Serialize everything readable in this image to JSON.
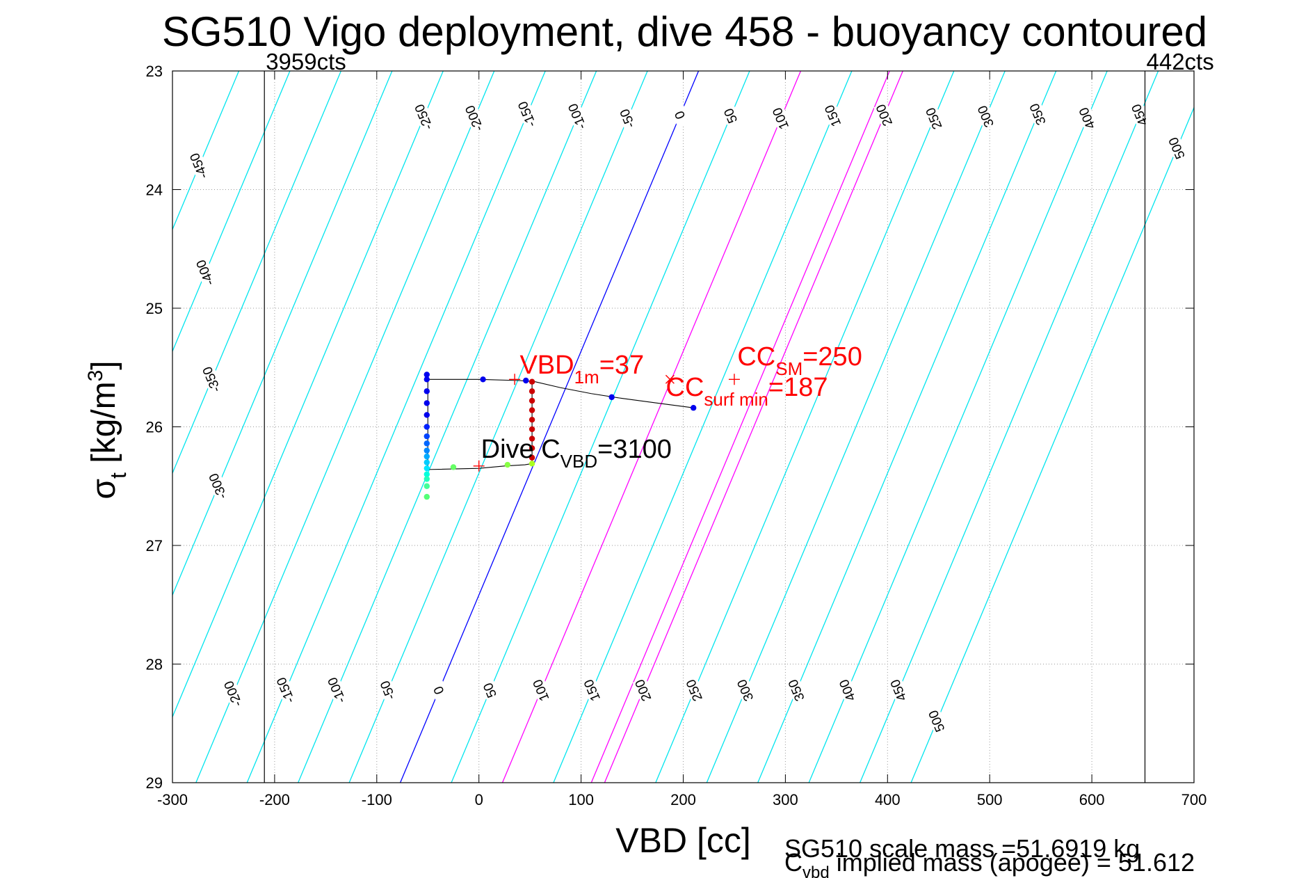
{
  "chart_data": {
    "type": "scatter",
    "title": "SG510 Vigo deployment, dive 458 - buoyancy contoured",
    "xlabel": "VBD [cc]",
    "ylabel_main": "σ",
    "ylabel_sub": "t",
    "ylabel_unit": " [kg/m",
    "ylabel_sup": "3",
    "ylabel_close": "]",
    "xlim": [
      -300,
      700
    ],
    "ylim": [
      23,
      29
    ],
    "y_reversed": true,
    "grid": "dotted",
    "xticks": [
      -300,
      -200,
      -100,
      0,
      100,
      200,
      300,
      400,
      500,
      600,
      700
    ],
    "yticks": [
      23,
      24,
      25,
      26,
      27,
      28,
      29
    ],
    "limit_lines": [
      {
        "x": -210,
        "label": "3959cts"
      },
      {
        "x": 652,
        "label": "442cts"
      }
    ],
    "contours": {
      "levels": [
        -450,
        -400,
        -350,
        -300,
        -250,
        -200,
        -150,
        -100,
        -50,
        0,
        50,
        100,
        150,
        200,
        250,
        300,
        350,
        400,
        450,
        500
      ],
      "top_labels": [
        -450,
        -400,
        -350,
        -300,
        -250,
        -200,
        -150,
        -100,
        -50,
        0,
        50,
        100,
        150,
        200,
        250,
        300,
        350,
        400,
        450,
        500
      ],
      "bottom_labels": [
        -200,
        -150,
        -100,
        -50,
        0,
        50,
        100,
        150,
        200,
        250,
        300,
        350,
        400,
        450,
        500
      ],
      "vbd_at_sigma": [
        {
          "level": 0,
          "sigma_top": 23,
          "vbd_top": 215,
          "sigma_bottom": 29,
          "vbd_bottom": -77
        },
        {
          "level": 100,
          "sigma_top": 23,
          "vbd_top": 315,
          "sigma_bottom": 29,
          "vbd_bottom": 23
        },
        {
          "level": 187,
          "sigma_top": 23,
          "vbd_top": 402,
          "sigma_bottom": 29,
          "vbd_bottom": 110
        },
        {
          "level": 200,
          "sigma_top": 23,
          "vbd_top": 415,
          "sigma_bottom": 29,
          "vbd_bottom": 123
        }
      ],
      "colors": {
        "normal": "#00e5ee",
        "zero": "#0000ff",
        "highlight": "#ff00ff"
      }
    },
    "series": [
      {
        "kind": "trace",
        "points": [
          [
            -50,
            26.36
          ],
          [
            0,
            26.35
          ],
          [
            25,
            26.33
          ],
          [
            45,
            26.32
          ],
          [
            52,
            26.31
          ]
        ]
      },
      {
        "kind": "trace",
        "points": [
          [
            -50,
            25.6
          ],
          [
            0,
            25.6
          ],
          [
            40,
            25.61
          ],
          [
            55,
            25.62
          ],
          [
            80,
            25.67
          ],
          [
            110,
            25.72
          ],
          [
            140,
            25.76
          ],
          [
            175,
            25.8
          ],
          [
            210,
            25.84
          ]
        ]
      },
      {
        "kind": "trace",
        "points": [
          [
            -50,
            25.6
          ],
          [
            -50,
            26.36
          ]
        ]
      },
      {
        "kind": "trace",
        "points": [
          [
            52,
            25.62
          ],
          [
            52,
            26.31
          ]
        ]
      }
    ],
    "dots": [
      {
        "x": -51,
        "y": 25.56,
        "color": "#0000ee"
      },
      {
        "x": -51,
        "y": 25.6,
        "color": "#0000ee"
      },
      {
        "x": 4,
        "y": 25.6,
        "color": "#0000ee"
      },
      {
        "x": 46,
        "y": 25.61,
        "color": "#0000ee"
      },
      {
        "x": 130,
        "y": 25.75,
        "color": "#0000ee"
      },
      {
        "x": 210,
        "y": 25.84,
        "color": "#0000ee"
      },
      {
        "x": -51,
        "y": 25.7,
        "color": "#0000ee"
      },
      {
        "x": -51,
        "y": 25.8,
        "color": "#0000ee"
      },
      {
        "x": -51,
        "y": 25.9,
        "color": "#0000ee"
      },
      {
        "x": -51,
        "y": 26.0,
        "color": "#0022ff"
      },
      {
        "x": -51,
        "y": 26.08,
        "color": "#0044ff"
      },
      {
        "x": -51,
        "y": 26.14,
        "color": "#0066ff"
      },
      {
        "x": -51,
        "y": 26.2,
        "color": "#0088ff"
      },
      {
        "x": -51,
        "y": 26.25,
        "color": "#00aaff"
      },
      {
        "x": -51,
        "y": 26.3,
        "color": "#00ccff"
      },
      {
        "x": -51,
        "y": 26.35,
        "color": "#00e5ff"
      },
      {
        "x": -51,
        "y": 26.4,
        "color": "#00ffdd"
      },
      {
        "x": -51,
        "y": 26.44,
        "color": "#22ffbb"
      },
      {
        "x": -51,
        "y": 26.5,
        "color": "#44ff99"
      },
      {
        "x": -51,
        "y": 26.59,
        "color": "#55ff77"
      },
      {
        "x": -25,
        "y": 26.34,
        "color": "#66ff66"
      },
      {
        "x": 28,
        "y": 26.32,
        "color": "#88ff44"
      },
      {
        "x": 52,
        "y": 26.31,
        "color": "#aaff22"
      },
      {
        "x": 52,
        "y": 25.62,
        "color": "#cc0000"
      },
      {
        "x": 52,
        "y": 25.7,
        "color": "#cc0000"
      },
      {
        "x": 52,
        "y": 25.78,
        "color": "#cc0000"
      },
      {
        "x": 52,
        "y": 25.86,
        "color": "#cc0000"
      },
      {
        "x": 52,
        "y": 25.94,
        "color": "#cc0000"
      },
      {
        "x": 52,
        "y": 26.02,
        "color": "#cc0000"
      },
      {
        "x": 52,
        "y": 26.1,
        "color": "#cc0000"
      },
      {
        "x": 52,
        "y": 26.18,
        "color": "#cc0000"
      },
      {
        "x": 52,
        "y": 26.26,
        "color": "#cc0000"
      }
    ],
    "markers": [
      {
        "x": 35,
        "y": 25.6,
        "symbol": "+",
        "color": "#ff0000"
      },
      {
        "x": 187,
        "y": 25.6,
        "symbol": "x",
        "color": "#ff0000"
      },
      {
        "x": 250,
        "y": 25.6,
        "symbol": "+",
        "color": "#ff0000"
      },
      {
        "x": 0,
        "y": 26.33,
        "symbol": "+",
        "color": "#ff0000"
      }
    ],
    "annotations": [
      {
        "x": 40,
        "y": 25.55,
        "main": "VBD",
        "sub": "1m",
        "rest": "=37",
        "color": "#ff0000"
      },
      {
        "x": 253,
        "y": 25.48,
        "main": "CC",
        "sub": "SM",
        "rest": "=250",
        "color": "#ff0000"
      },
      {
        "x": 183,
        "y": 25.74,
        "main": "CC",
        "sub": "surf min",
        "rest": "=187",
        "color": "#ff0000"
      },
      {
        "x": 2,
        "y": 26.26,
        "main": "Dive C",
        "sub": "VBD",
        "rest": "=3100",
        "color": "#000000"
      }
    ]
  },
  "footer": {
    "scale_mass": "SG510 scale mass =51.6919 kg",
    "implied_main": "C",
    "implied_sub": "vbd",
    "implied_rest": " implied mass (apogee) = 51.612"
  }
}
